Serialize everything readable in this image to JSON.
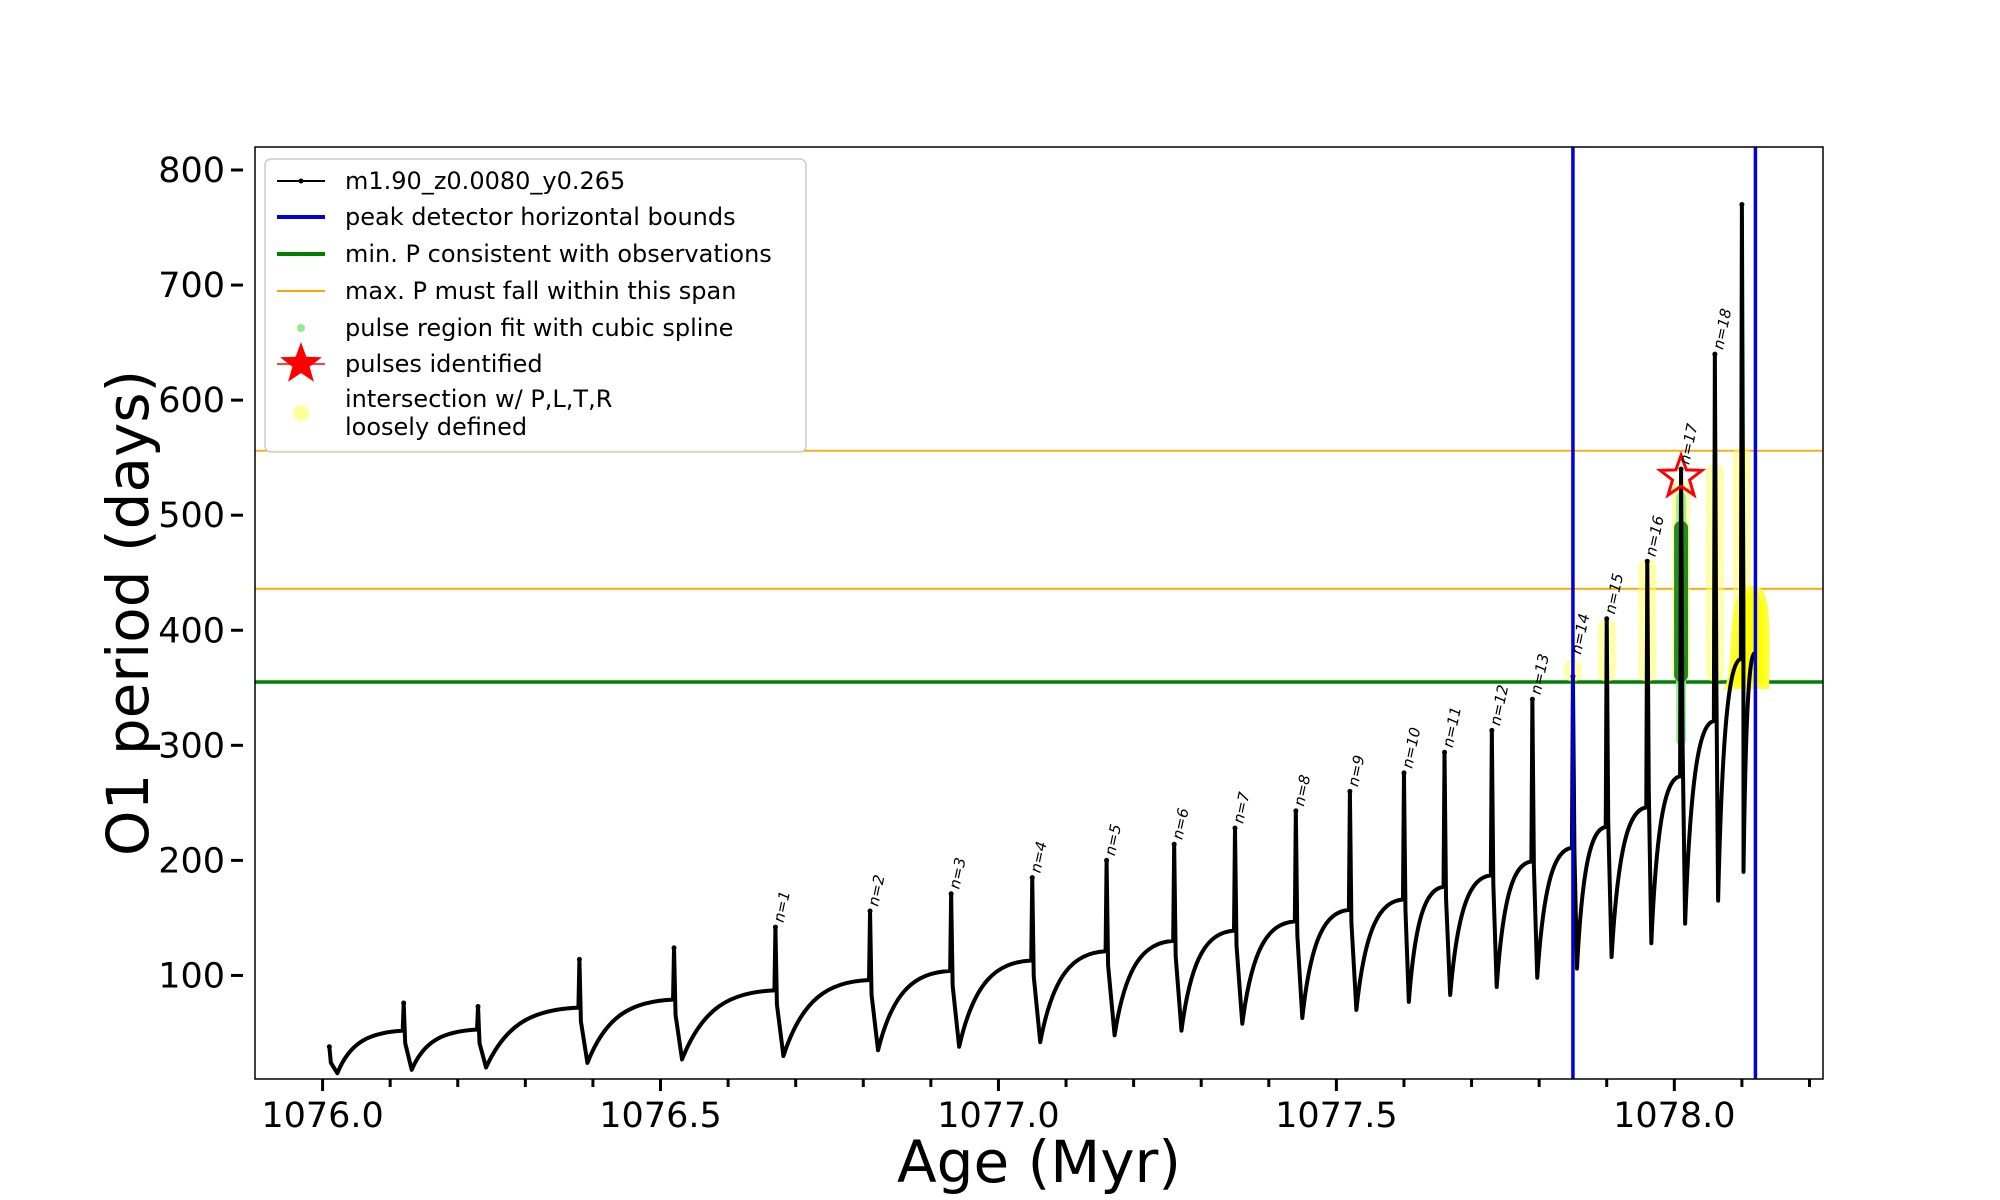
{
  "chart_data": {
    "type": "line",
    "xlabel": "Age (Myr)",
    "ylabel": "O1 period (days)",
    "xlim": [
      1075.9,
      1078.22
    ],
    "ylim": [
      10,
      820
    ],
    "x_ticks": [
      1076.0,
      1076.5,
      1077.0,
      1077.5,
      1078.0
    ],
    "x_tick_labels": [
      "1076.0",
      "1076.5",
      "1077.0",
      "1077.5",
      "1078.0"
    ],
    "y_ticks": [
      100,
      200,
      300,
      400,
      500,
      600,
      700,
      800
    ],
    "y_tick_labels": [
      "100",
      "200",
      "300",
      "400",
      "500",
      "600",
      "700",
      "800"
    ],
    "legend_position": "top-left",
    "legend": [
      {
        "label": "m1.90_z0.0080_y0.265",
        "marker": "line-dot",
        "color": "#000000"
      },
      {
        "label": "peak detector horizontal bounds",
        "marker": "line",
        "color": "#0000dd"
      },
      {
        "label": "min. P consistent with observations",
        "marker": "line",
        "color": "#008000"
      },
      {
        "label": "max. P must fall within this span",
        "marker": "thin-line",
        "color": "#ffa500"
      },
      {
        "label": "pulse region fit with cubic spline",
        "marker": "dot",
        "color": "#90ee90"
      },
      {
        "label": "pulses identified",
        "marker": "star",
        "color": "#ff0000"
      },
      {
        "label": "intersection w/ P,L,T,R\nloosely defined",
        "marker": "circle",
        "color": "#ffff99"
      }
    ],
    "vertical_lines": [
      {
        "x": 1077.85,
        "color": "#0000dd"
      },
      {
        "x": 1078.12,
        "color": "#0000dd"
      }
    ],
    "horizontal_lines": [
      {
        "y": 355,
        "color": "#008000"
      },
      {
        "y": 436,
        "color": "#ffa500"
      },
      {
        "y": 556,
        "color": "#ffa500"
      }
    ],
    "series": [
      {
        "name": "m1.90_z0.0080_y0.265",
        "color": "#000000",
        "pulses": [
          {
            "x": 1076.01,
            "peak": 38,
            "dip": 15,
            "end": 52
          },
          {
            "x": 1076.12,
            "peak": 76,
            "dip": 18,
            "end": 53
          },
          {
            "x": 1076.23,
            "peak": 73,
            "dip": 20,
            "end": 72
          },
          {
            "x": 1076.38,
            "peak": 114,
            "dip": 24,
            "end": 79
          },
          {
            "x": 1076.52,
            "peak": 124,
            "dip": 27,
            "end": 87
          },
          {
            "x": 1076.67,
            "peak": 142,
            "dip": 30,
            "end": 96
          },
          {
            "x": 1076.81,
            "peak": 156,
            "dip": 35,
            "end": 104
          },
          {
            "x": 1076.93,
            "peak": 171,
            "dip": 38,
            "end": 113
          },
          {
            "x": 1077.05,
            "peak": 185,
            "dip": 42,
            "end": 121
          },
          {
            "x": 1077.16,
            "peak": 200,
            "dip": 48,
            "end": 130
          },
          {
            "x": 1077.26,
            "peak": 214,
            "dip": 52,
            "end": 139
          },
          {
            "x": 1077.35,
            "peak": 228,
            "dip": 58,
            "end": 147
          },
          {
            "x": 1077.44,
            "peak": 243,
            "dip": 63,
            "end": 157
          },
          {
            "x": 1077.52,
            "peak": 260,
            "dip": 70,
            "end": 166
          },
          {
            "x": 1077.6,
            "peak": 276,
            "dip": 77,
            "end": 177
          },
          {
            "x": 1077.66,
            "peak": 294,
            "dip": 83,
            "end": 187
          },
          {
            "x": 1077.73,
            "peak": 313,
            "dip": 90,
            "end": 199
          },
          {
            "x": 1077.79,
            "peak": 340,
            "dip": 98,
            "end": 211
          },
          {
            "x": 1077.85,
            "peak": 360,
            "dip": 106,
            "end": 229
          },
          {
            "x": 1077.9,
            "peak": 410,
            "dip": 116,
            "end": 246
          },
          {
            "x": 1077.96,
            "peak": 460,
            "dip": 128,
            "end": 273
          },
          {
            "x": 1078.01,
            "peak": 540,
            "dip": 145,
            "end": 321
          },
          {
            "x": 1078.06,
            "peak": 640,
            "dip": 165,
            "end": 375
          },
          {
            "x": 1078.1,
            "peak": 770,
            "dip": 190,
            "end": 380
          }
        ]
      }
    ],
    "pulse_labels": [
      {
        "text": "n=1",
        "x": 1076.67,
        "y": 142
      },
      {
        "text": "n=2",
        "x": 1076.81,
        "y": 156
      },
      {
        "text": "n=3",
        "x": 1076.93,
        "y": 171
      },
      {
        "text": "n=4",
        "x": 1077.05,
        "y": 185
      },
      {
        "text": "n=5",
        "x": 1077.16,
        "y": 200
      },
      {
        "text": "n=6",
        "x": 1077.26,
        "y": 214
      },
      {
        "text": "n=7",
        "x": 1077.35,
        "y": 228
      },
      {
        "text": "n=8",
        "x": 1077.44,
        "y": 243
      },
      {
        "text": "n=9",
        "x": 1077.52,
        "y": 260
      },
      {
        "text": "n=10",
        "x": 1077.6,
        "y": 276
      },
      {
        "text": "n=11",
        "x": 1077.66,
        "y": 294
      },
      {
        "text": "n=12",
        "x": 1077.73,
        "y": 313
      },
      {
        "text": "n=13",
        "x": 1077.79,
        "y": 340
      },
      {
        "text": "n=14",
        "x": 1077.85,
        "y": 375
      },
      {
        "text": "n=15",
        "x": 1077.9,
        "y": 410
      },
      {
        "text": "n=16",
        "x": 1077.96,
        "y": 460
      },
      {
        "text": "n=17",
        "x": 1078.01,
        "y": 540
      },
      {
        "text": "n=18",
        "x": 1078.06,
        "y": 640
      }
    ],
    "yellow_regions": [
      {
        "x": 1077.85,
        "ymin": 355,
        "ymax": 375
      },
      {
        "x": 1077.9,
        "ymin": 355,
        "ymax": 410
      },
      {
        "x": 1077.96,
        "ymin": 355,
        "ymax": 462
      },
      {
        "x": 1078.01,
        "ymin": 355,
        "ymax": 530
      },
      {
        "x": 1078.06,
        "ymin": 355,
        "ymax": 545
      },
      {
        "x": 1078.1,
        "ymin": 355,
        "ymax": 560
      }
    ],
    "yellow_hump": {
      "x_start": 1078.08,
      "x_peak": 1078.115,
      "x_end": 1078.13,
      "ymin": 355,
      "ymax": 436
    },
    "green_spline": {
      "x": 1078.01,
      "ymin": 355,
      "ymax": 495,
      "light_ymin": 300,
      "light_ymax": 520
    },
    "star": {
      "x": 1078.01,
      "y": 533
    }
  }
}
